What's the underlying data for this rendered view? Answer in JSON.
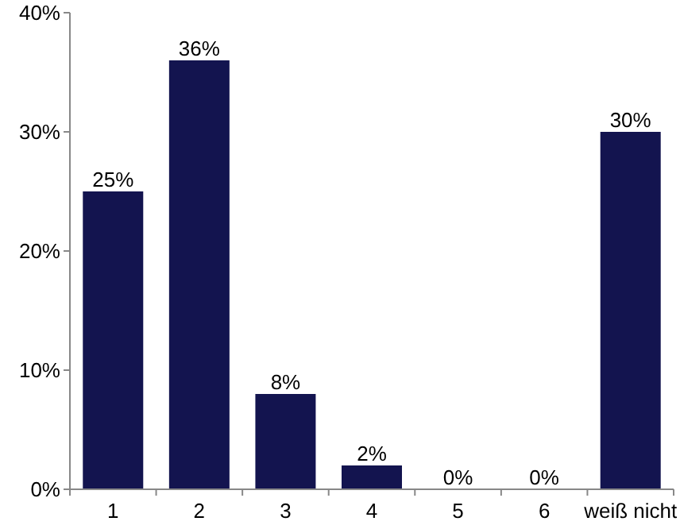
{
  "chart_data": {
    "type": "bar",
    "categories": [
      "1",
      "2",
      "3",
      "4",
      "5",
      "6",
      "weiß nicht"
    ],
    "values": [
      25,
      36,
      8,
      2,
      0,
      0,
      30
    ],
    "color": "#13144f",
    "value_labels": [
      "25%",
      "36%",
      "8%",
      "2%",
      "0%",
      "0%",
      "30%"
    ],
    "ylim": [
      0,
      40
    ],
    "yticks": [
      {
        "value": 0,
        "label": "0%"
      },
      {
        "value": 10,
        "label": "10%"
      },
      {
        "value": 20,
        "label": "20%"
      },
      {
        "value": 30,
        "label": "30%"
      },
      {
        "value": 40,
        "label": "40%"
      }
    ],
    "grid": false
  }
}
